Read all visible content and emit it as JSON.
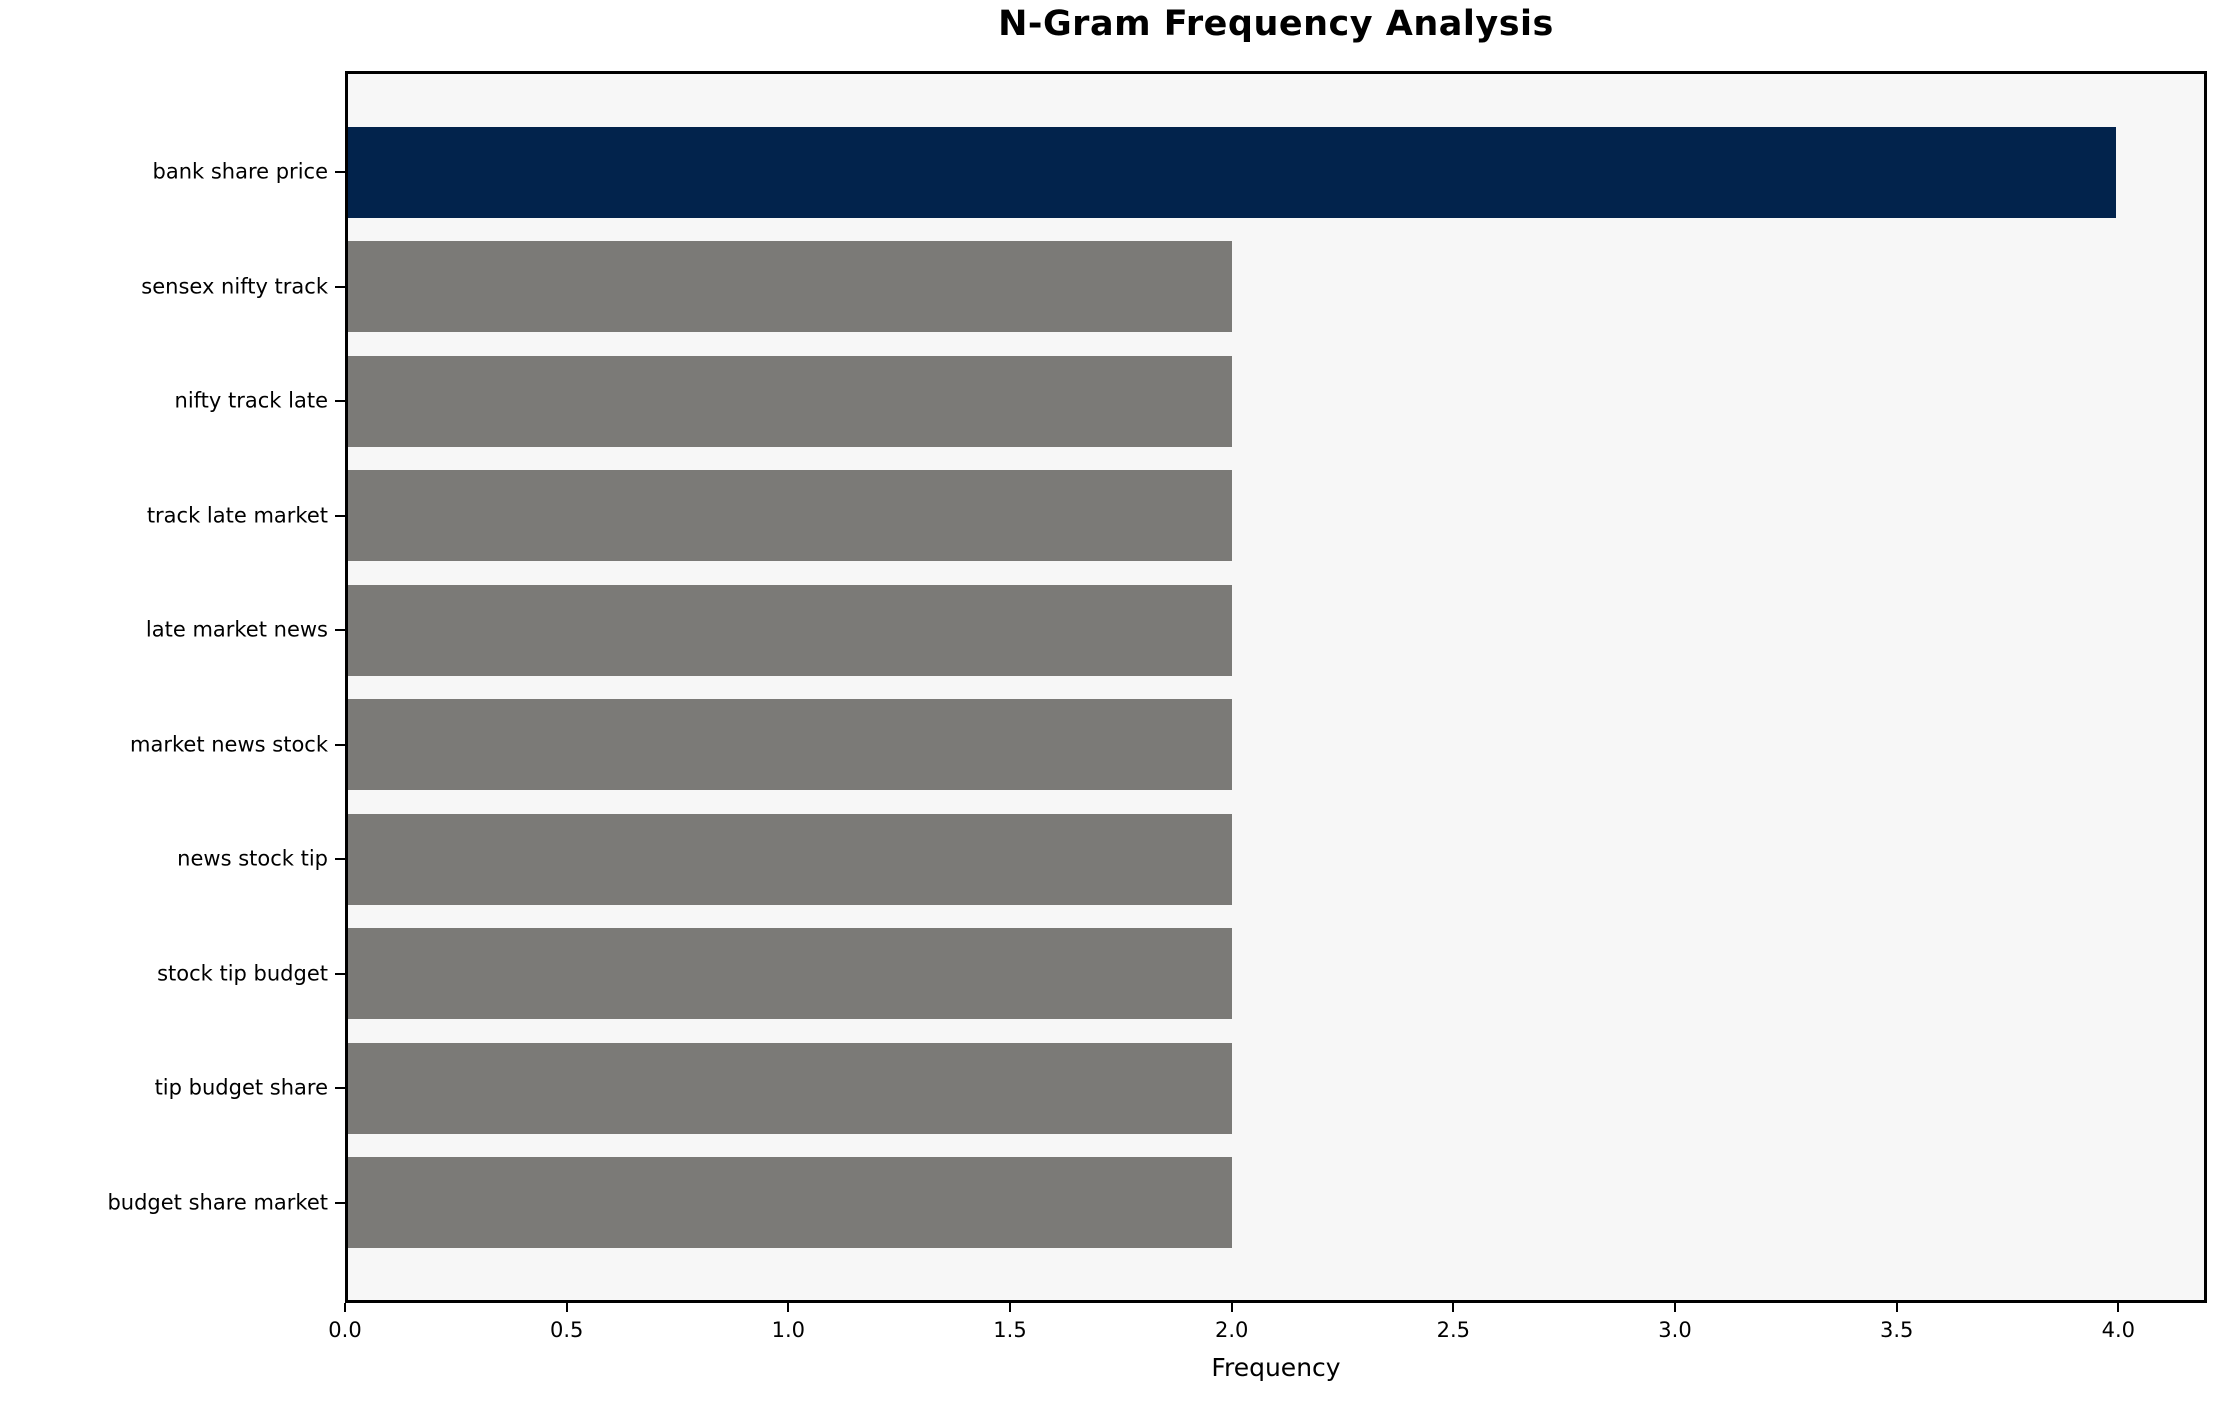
{
  "chart_data": {
    "type": "bar",
    "orientation": "horizontal",
    "title": "N-Gram Frequency Analysis",
    "xlabel": "Frequency",
    "ylabel": "",
    "categories": [
      "bank share price",
      "sensex nifty track",
      "nifty track late",
      "track late market",
      "late market news",
      "market news stock",
      "news stock tip",
      "stock tip budget",
      "tip budget share",
      "budget share market"
    ],
    "values": [
      4,
      2,
      2,
      2,
      2,
      2,
      2,
      2,
      2,
      2
    ],
    "bar_colors": [
      "#02234C",
      "#7B7A77",
      "#7B7A77",
      "#7B7A77",
      "#7B7A77",
      "#7B7A77",
      "#7B7A77",
      "#7B7A77",
      "#7B7A77",
      "#7B7A77"
    ],
    "xlim": [
      0,
      4.2
    ],
    "xticks": [
      0.0,
      0.5,
      1.0,
      1.5,
      2.0,
      2.5,
      3.0,
      3.5,
      4.0
    ],
    "xtick_labels": [
      "0.0",
      "0.5",
      "1.0",
      "1.5",
      "2.0",
      "2.5",
      "3.0",
      "3.5",
      "4.0"
    ],
    "grid": false,
    "legend_position": "none"
  },
  "colors": {
    "highlight_bar": "#02234C",
    "default_bar": "#7B7A77",
    "plot_background": "#F7F7F7",
    "figure_background": "#FFFFFF",
    "spine": "#000000",
    "text": "#000000"
  }
}
